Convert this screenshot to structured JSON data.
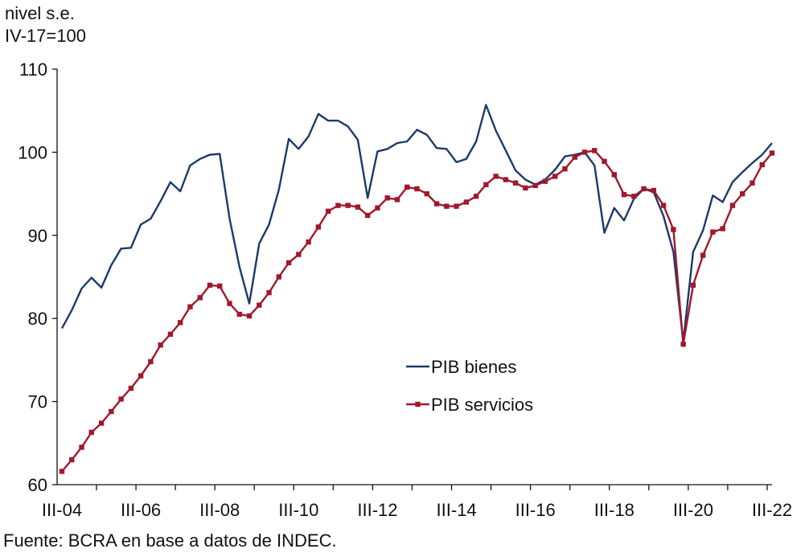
{
  "chart_data": {
    "type": "line",
    "ylabel_line1": "nivel s.e.",
    "ylabel_line2": "IV-17=100",
    "source": "Fuente: BCRA en base a datos de INDEC.",
    "ylim": [
      60,
      110
    ],
    "yticks": [
      60,
      70,
      80,
      90,
      100,
      110
    ],
    "x_tick_labels": [
      "III-04",
      "III-06",
      "III-08",
      "III-10",
      "III-12",
      "III-14",
      "III-16",
      "III-18",
      "III-20",
      "III-22"
    ],
    "x_tick_label_start": "III-04",
    "x_tick_label_every": 8,
    "x_range": {
      "start": "III-04",
      "end": "III-22"
    },
    "grid": false,
    "legend_position": "center-right",
    "series": [
      {
        "name": "PIB bienes",
        "color": "#1b3a6b",
        "marker": "none",
        "values": [
          78.8,
          81.0,
          83.6,
          84.9,
          83.7,
          86.4,
          88.4,
          88.5,
          91.3,
          92.0,
          94.1,
          96.4,
          95.3,
          98.4,
          99.2,
          99.7,
          99.8,
          92.0,
          86.2,
          81.8,
          89.0,
          91.3,
          95.5,
          101.6,
          100.4,
          101.9,
          104.6,
          103.8,
          103.8,
          103.1,
          101.5,
          94.5,
          100.1,
          100.4,
          101.1,
          101.3,
          102.7,
          102.1,
          100.5,
          100.4,
          98.8,
          99.2,
          101.3,
          105.7,
          102.6,
          100.2,
          97.8,
          96.7,
          96.1,
          96.7,
          97.9,
          99.5,
          99.7,
          100.0,
          98.4,
          90.3,
          93.3,
          91.8,
          94.4,
          95.6,
          95.2,
          92.3,
          88.0,
          77.2,
          88.0,
          90.6,
          94.8,
          94.0,
          96.4,
          97.6,
          98.7,
          99.7,
          101.1
        ]
      },
      {
        "name": "PIB servicios",
        "color": "#a0182e",
        "marker": "square",
        "values": [
          61.6,
          63.0,
          64.5,
          66.3,
          67.4,
          68.8,
          70.3,
          71.6,
          73.1,
          74.8,
          76.8,
          78.1,
          79.5,
          81.4,
          82.5,
          84.0,
          83.9,
          81.8,
          80.5,
          80.3,
          81.6,
          83.1,
          85.0,
          86.7,
          87.7,
          89.2,
          91.0,
          92.9,
          93.6,
          93.6,
          93.4,
          92.4,
          93.3,
          94.5,
          94.3,
          95.8,
          95.6,
          95.0,
          93.8,
          93.5,
          93.5,
          94.0,
          94.7,
          96.1,
          97.1,
          96.7,
          96.3,
          95.7,
          96.0,
          96.5,
          97.1,
          98.0,
          99.4,
          100.0,
          100.2,
          98.9,
          97.3,
          94.9,
          94.7,
          95.6,
          95.4,
          93.6,
          90.7,
          76.9,
          84.0,
          87.6,
          90.4,
          90.8,
          93.6,
          95.0,
          96.3,
          98.5,
          99.9
        ]
      }
    ]
  }
}
